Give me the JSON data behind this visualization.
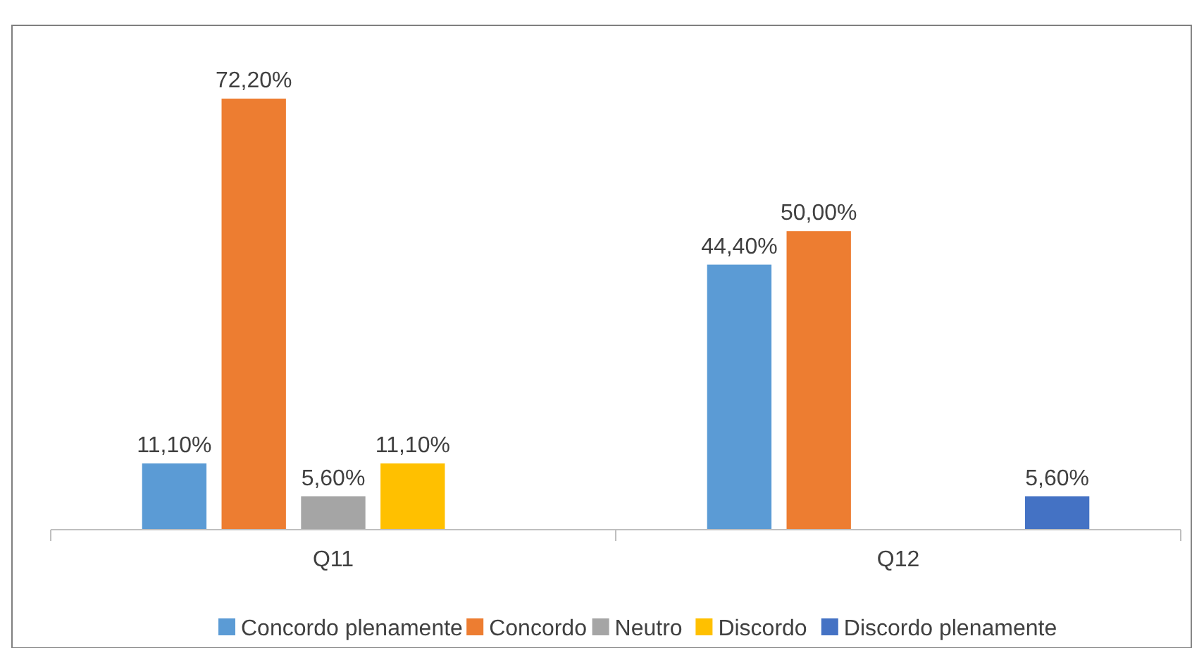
{
  "chart_data": {
    "type": "bar",
    "categories": [
      "Q11",
      "Q12"
    ],
    "series": [
      {
        "name": "Concordo plenamente",
        "color": "#5b9bd5",
        "values": [
          11.1,
          44.4
        ],
        "value_labels": [
          "11,10%",
          "44,40%"
        ]
      },
      {
        "name": "Concordo",
        "color": "#ed7d31",
        "values": [
          72.2,
          50
        ],
        "value_labels": [
          "72,20%",
          "50,00%"
        ]
      },
      {
        "name": "Neutro",
        "color": "#a5a5a5",
        "values": [
          5.6,
          null
        ],
        "value_labels": [
          "5,60%",
          null
        ]
      },
      {
        "name": "Discordo",
        "color": "#ffc000",
        "values": [
          11.1,
          null
        ],
        "value_labels": [
          "11,10%",
          null
        ]
      },
      {
        "name": "Discordo plenamente",
        "color": "#4472c4",
        "values": [
          null,
          5.6
        ],
        "value_labels": [
          null,
          "5,60%"
        ]
      }
    ],
    "legend": "bottom"
  }
}
